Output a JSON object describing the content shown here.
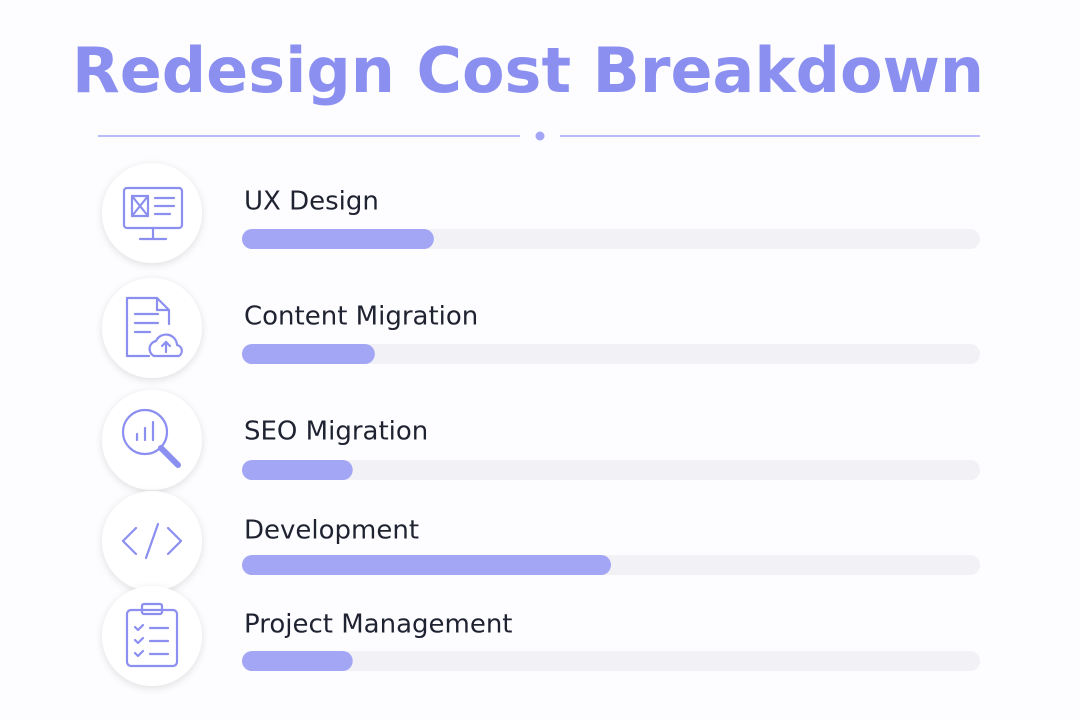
{
  "chart_data": {
    "type": "bar",
    "orientation": "horizontal",
    "title": "Redesign Cost Breakdown",
    "categories": [
      "UX Design",
      "Content Migration",
      "SEO Migration",
      "Development",
      "Project Management"
    ],
    "values": [
      26,
      18,
      15,
      50,
      15
    ],
    "color": "#a3a6f5",
    "xlim": [
      0,
      100
    ]
  }
}
